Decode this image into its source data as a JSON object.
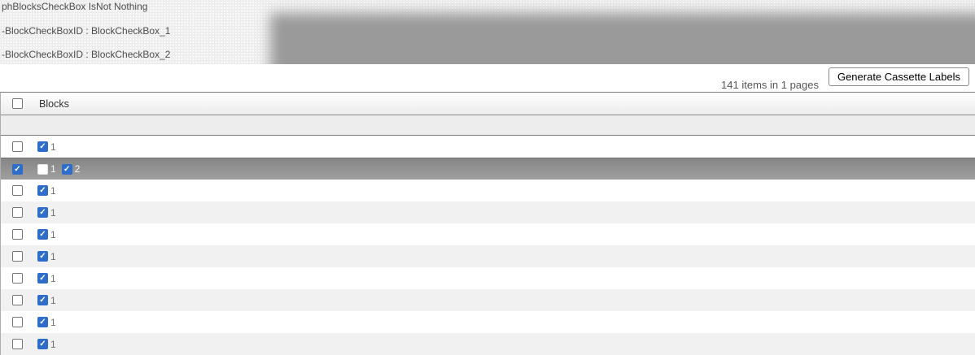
{
  "debug_panel": {
    "lines": [
      "phBlocksCheckBox IsNot Nothing",
      "-BlockCheckBoxID : BlockCheckBox_1",
      "-BlockCheckBoxID : BlockCheckBox_2"
    ]
  },
  "toolbar": {
    "items_summary": "141 items in 1 pages",
    "generate_button_label": "Generate Cassette Labels"
  },
  "table": {
    "header": {
      "select_all_checked": false,
      "blocks_label": "Blocks"
    },
    "rows": [
      {
        "selected": false,
        "blocks": [
          {
            "label": "1",
            "checked": true
          }
        ]
      },
      {
        "selected": true,
        "blocks": [
          {
            "label": "1",
            "checked": false
          },
          {
            "label": "2",
            "checked": true
          }
        ]
      },
      {
        "selected": false,
        "blocks": [
          {
            "label": "1",
            "checked": true
          }
        ]
      },
      {
        "selected": false,
        "blocks": [
          {
            "label": "1",
            "checked": true
          }
        ]
      },
      {
        "selected": false,
        "blocks": [
          {
            "label": "1",
            "checked": true
          }
        ]
      },
      {
        "selected": false,
        "blocks": [
          {
            "label": "1",
            "checked": true
          }
        ]
      },
      {
        "selected": false,
        "blocks": [
          {
            "label": "1",
            "checked": true
          }
        ]
      },
      {
        "selected": false,
        "blocks": [
          {
            "label": "1",
            "checked": true
          }
        ]
      },
      {
        "selected": false,
        "blocks": [
          {
            "label": "1",
            "checked": true
          }
        ]
      },
      {
        "selected": false,
        "blocks": [
          {
            "label": "1",
            "checked": true
          }
        ]
      }
    ]
  },
  "glyphs": {
    "checkmark": "✓"
  },
  "colors": {
    "accent_blue": "#2e6dc9",
    "selected_row_gray": "#909090",
    "blob_gray": "#9a9a9a",
    "alt_row": "#f1f1f1"
  }
}
